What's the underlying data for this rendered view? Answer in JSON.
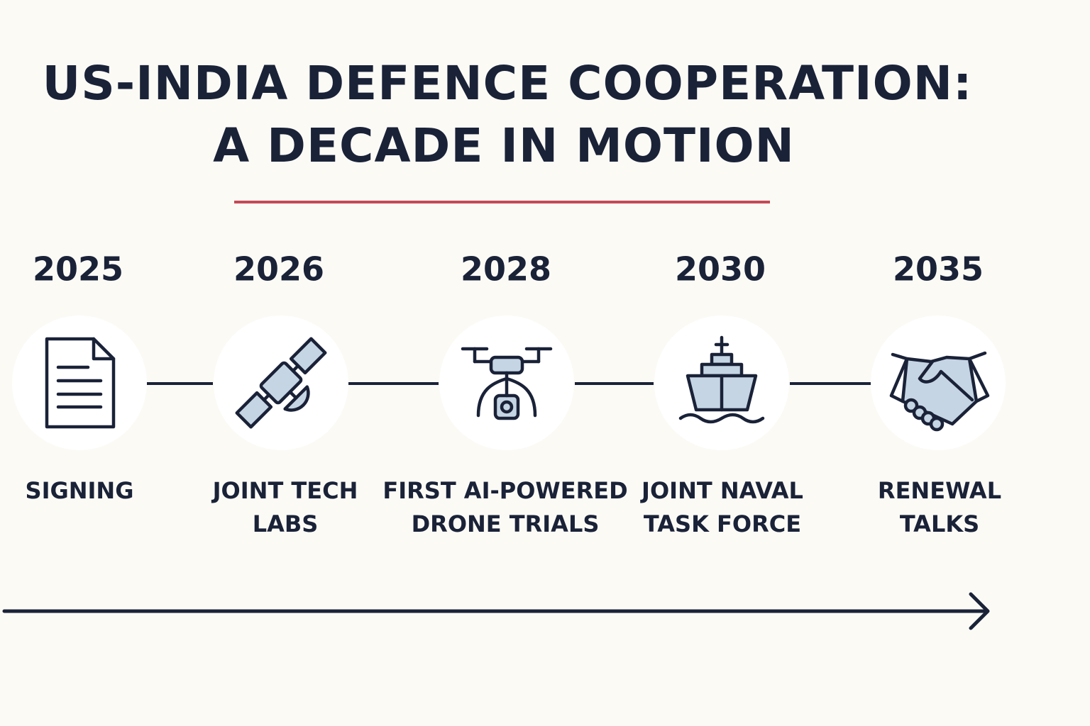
{
  "title": {
    "lines": [
      "US-INDIA DEFENCE COOPERATION:",
      "A DECADE IN MOTION"
    ]
  },
  "milestones": [
    {
      "year": "2025",
      "label": [
        "SIGNING"
      ]
    },
    {
      "year": "2026",
      "label": [
        "JOINT TECH",
        "LABS"
      ]
    },
    {
      "year": "2028",
      "label": [
        "FIRST AI-POWERED",
        "DRONE TRIALS"
      ]
    },
    {
      "year": "2030",
      "label": [
        "JOINT NAVAL",
        "TASK FORCE"
      ]
    },
    {
      "year": "2035",
      "label": [
        "RENEWAL",
        "TALKS"
      ]
    }
  ]
}
